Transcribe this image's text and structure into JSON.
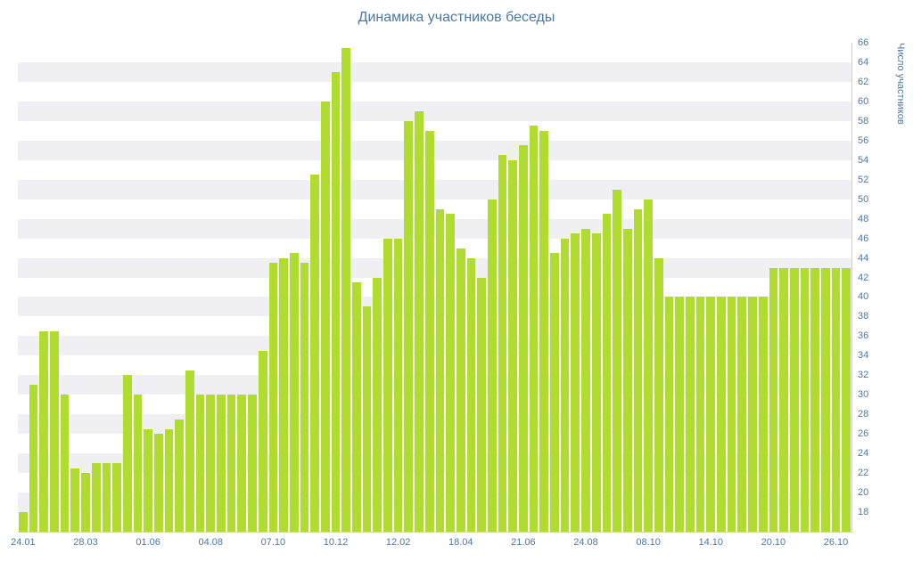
{
  "colors": {
    "bar": "#b0dc30",
    "label": "#4d78a2",
    "title": "#4d78a2",
    "stripe": "#f0f0f4",
    "axis_line": "#cdd0d6"
  },
  "chart_data": {
    "type": "bar",
    "title": "Динамика участников беседы",
    "xlabel": "",
    "ylabel": "Число участников",
    "ylim": [
      16,
      66
    ],
    "ytick_step": 2,
    "yticks": [
      18,
      20,
      22,
      24,
      26,
      28,
      30,
      32,
      34,
      36,
      38,
      40,
      42,
      44,
      46,
      48,
      50,
      52,
      54,
      56,
      58,
      60,
      62,
      64,
      66
    ],
    "grid": "horizontal-stripes",
    "legend": "none",
    "x_labels": [
      "24.01",
      "28.03",
      "01.06",
      "04.08",
      "07.10",
      "10.12",
      "12.02",
      "18.04",
      "21.06",
      "24.08",
      "08.10",
      "14.10",
      "20.10",
      "26.10"
    ],
    "x_label_indices": [
      0,
      6,
      12,
      18,
      24,
      30,
      36,
      42,
      48,
      54,
      60,
      66,
      72,
      78
    ],
    "values": [
      18,
      31,
      36.5,
      36.5,
      30,
      22.5,
      22,
      23,
      23,
      23,
      32,
      30,
      26.5,
      26,
      26.5,
      27.5,
      32.5,
      30,
      30,
      30,
      30,
      30,
      30,
      34.5,
      43.5,
      44,
      44.5,
      43.5,
      52.5,
      60,
      63,
      65.5,
      41.5,
      39,
      42,
      46,
      46,
      58,
      59,
      57,
      49,
      48.5,
      45,
      44,
      42,
      50,
      54.5,
      54,
      55.5,
      57.5,
      57,
      44.5,
      46,
      46.5,
      47,
      46.5,
      48.5,
      51,
      47,
      49,
      50,
      44,
      40,
      40,
      40,
      40,
      40,
      40,
      40,
      40,
      40,
      40,
      43,
      43,
      43,
      43,
      43,
      43,
      43,
      43
    ]
  }
}
